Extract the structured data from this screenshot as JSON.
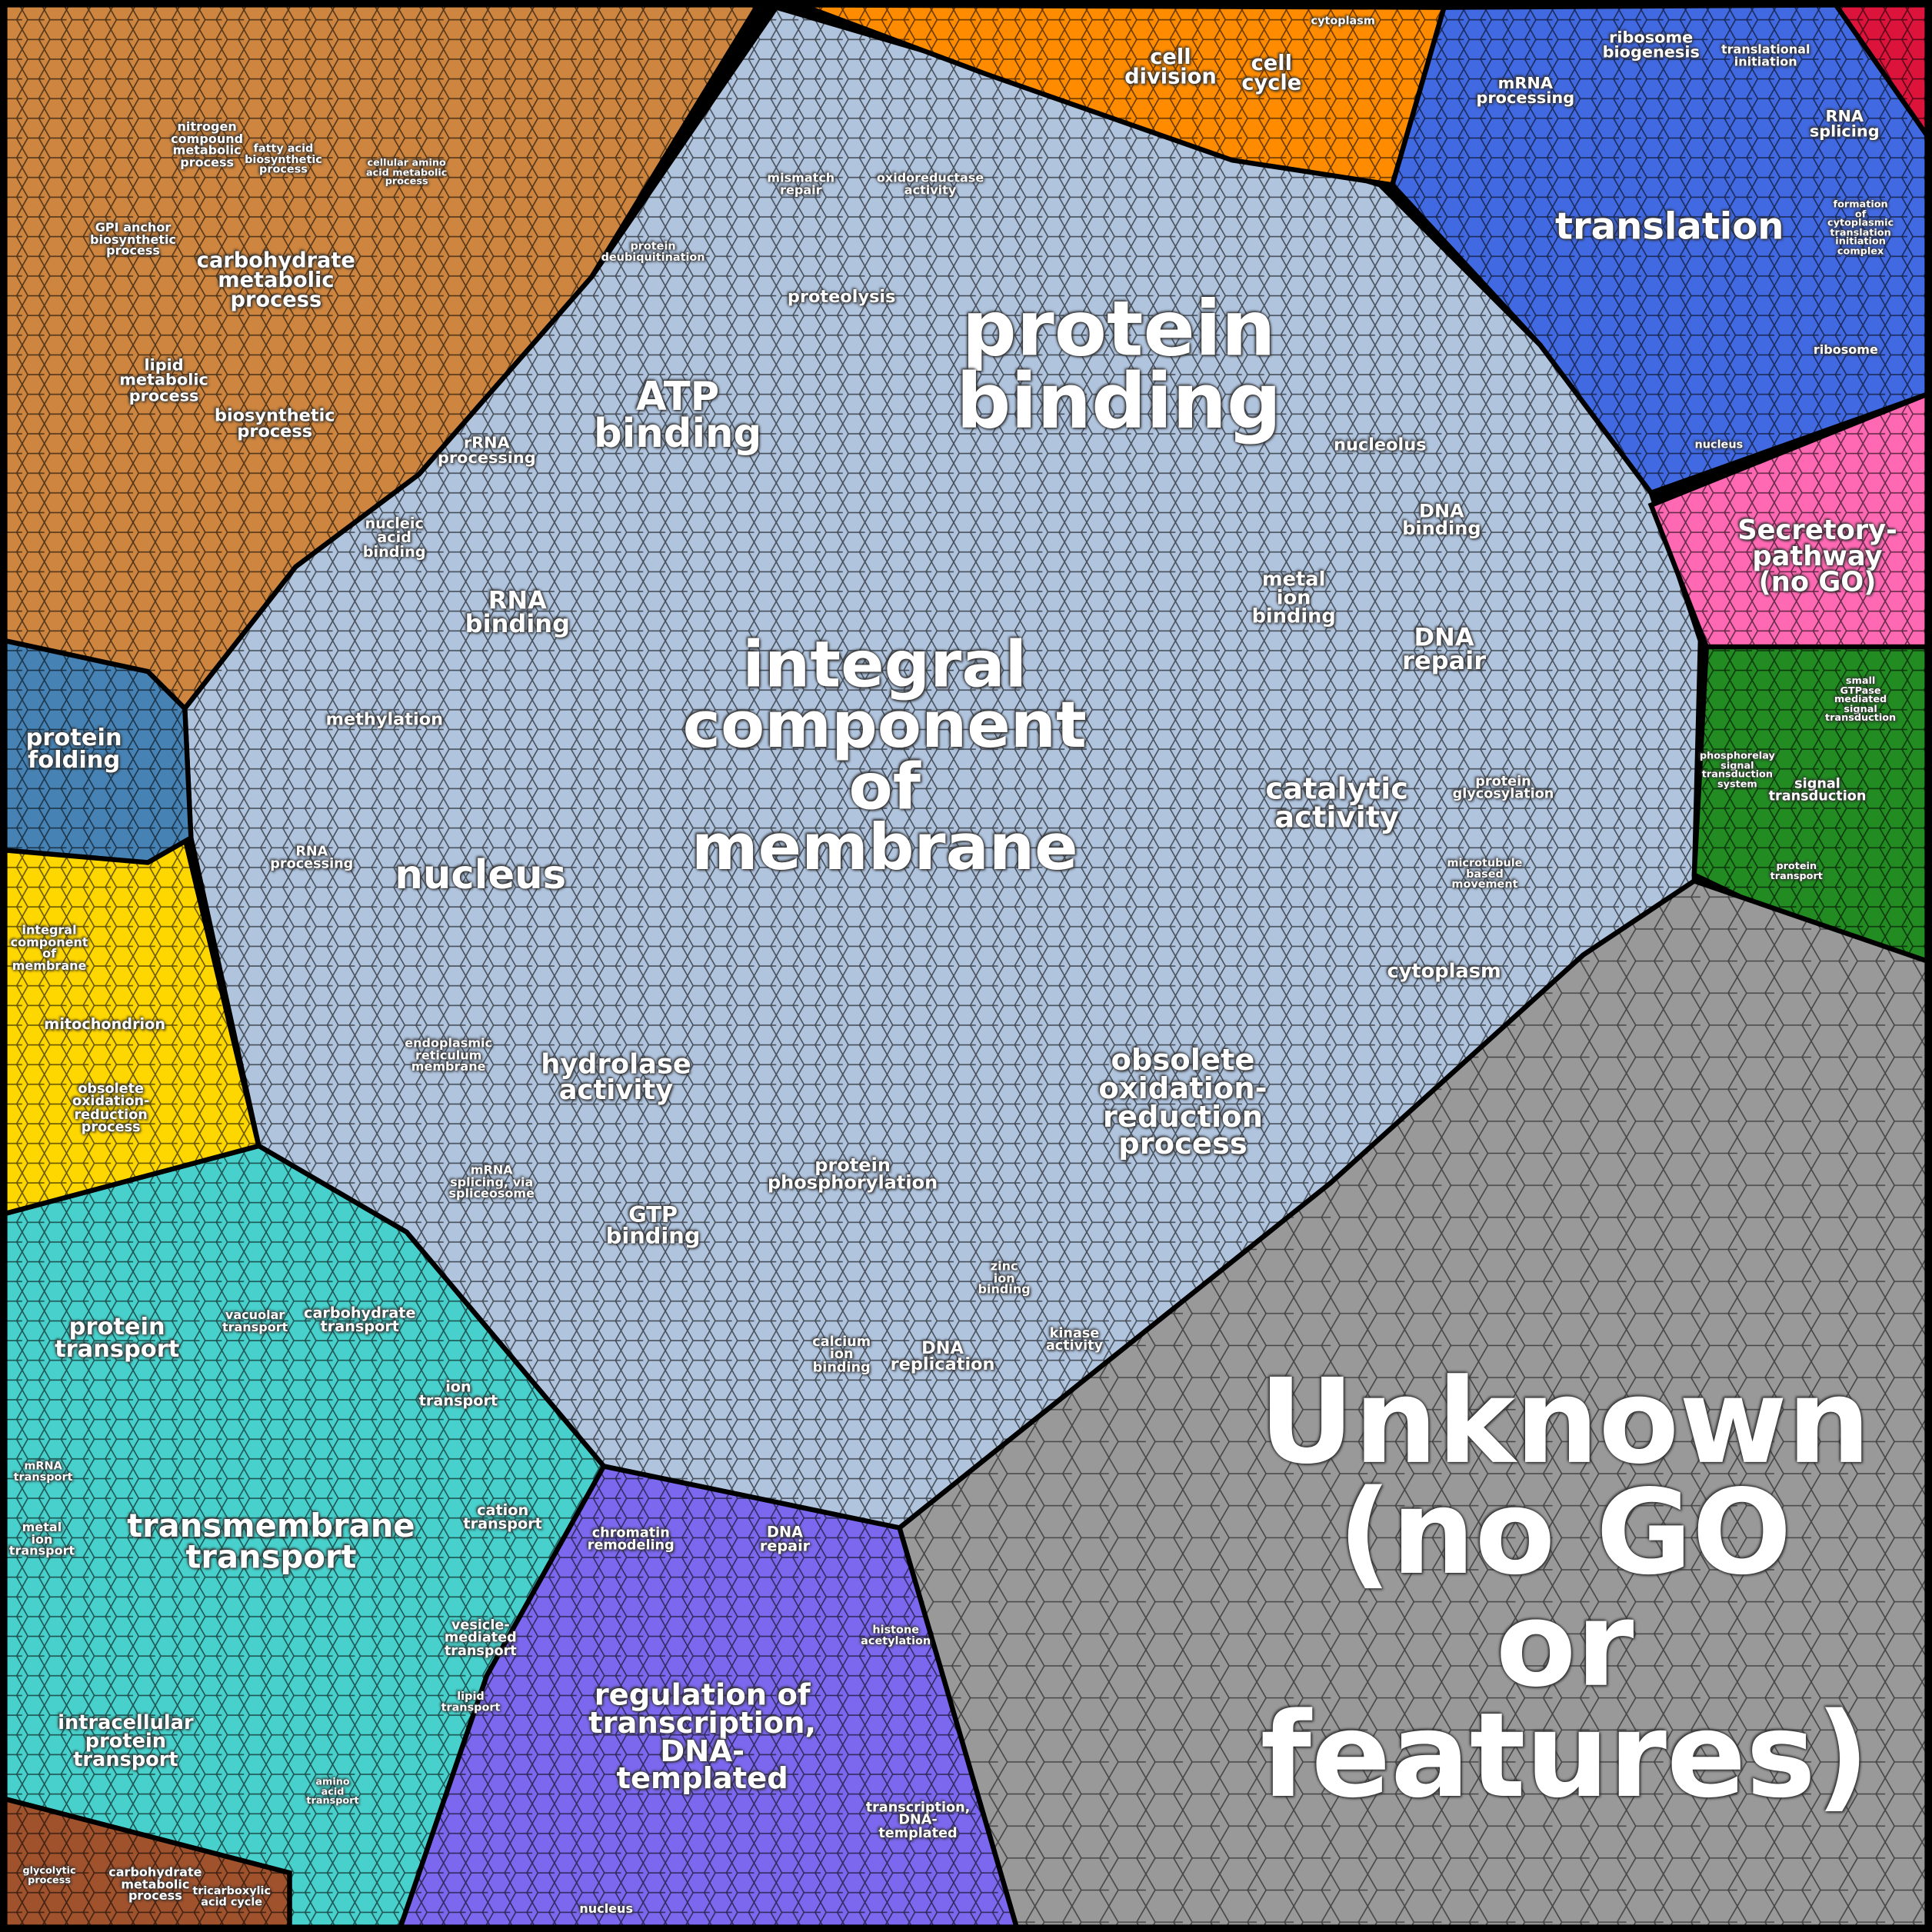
{
  "colors": {
    "metabolism": "#cd853f",
    "genetic_processing_membrane": "#b0c4de",
    "cell_cycle": "#ff8c00",
    "translation": "#4169e1",
    "signaling_red": "#dc143c",
    "secretory": "#ff69b4",
    "signaling": "#228b22",
    "unknown": "#999999",
    "transcription": "#7b68ee",
    "transport": "#48d1cc",
    "mitochondrion": "#ffd700",
    "folding": "#4682b4",
    "energy": "#a0522d"
  },
  "regions": [
    {
      "name": "metabolism",
      "color_key": "metabolism"
    },
    {
      "name": "membrane-and-binding",
      "color_key": "genetic_processing_membrane"
    },
    {
      "name": "cell-cycle",
      "color_key": "cell_cycle"
    },
    {
      "name": "translation",
      "color_key": "translation"
    },
    {
      "name": "red-region",
      "color_key": "signaling_red"
    },
    {
      "name": "secretory-pathway",
      "color_key": "secretory"
    },
    {
      "name": "signaling",
      "color_key": "signaling"
    },
    {
      "name": "unknown",
      "color_key": "unknown"
    },
    {
      "name": "transcription",
      "color_key": "transcription"
    },
    {
      "name": "transport",
      "color_key": "transport"
    },
    {
      "name": "mitochondrion",
      "color_key": "mitochondrion"
    },
    {
      "name": "protein-folding",
      "color_key": "folding"
    },
    {
      "name": "energy-metabolism",
      "color_key": "energy"
    }
  ],
  "labels": [
    "Unknown\n(no GO\nor\nfeatures)",
    "protein\nbinding",
    "integral\ncomponent\nof\nmembrane",
    "translation",
    "nucleus",
    "ATP\nbinding",
    "regulation of\ntranscription,\nDNA-\ntemplated",
    "transmembrane\ntransport",
    "obsolete\noxidation-\nreduction\nprocess",
    "catalytic\nactivity",
    "hydrolase\nactivity",
    "Secretory-\npathway\n(no GO)",
    "DNA\nrepair",
    "RNA\nbinding",
    "metal\nion\nbinding",
    "carbohydrate\nmetabolic\nprocess",
    "protein\nfolding",
    "protein\ntransport",
    "intracellular\nprotein\ntransport",
    "cell\ndivision",
    "cell\ncycle",
    "mRNA\nprocessing",
    "ribosome\nbiogenesis",
    "RNA\nsplicing",
    "ribosome",
    "signal\ntransduction",
    "GTP\nbinding",
    "protein\nphosphorylation",
    "cytoplasm",
    "DNA\nbinding",
    "nucleolus",
    "proteolysis",
    "rRNA\nprocessing",
    "methylation",
    "nucleic\nacid\nbinding",
    "RNA\nprocessing",
    "lipid\nmetabolic\nprocess",
    "biosynthetic\nprocess",
    "mitochondrion",
    "obsolete\noxidation-\nreduction\nprocess",
    "integral\ncomponent\nof\nmembrane",
    "carbohydrate\ntransport",
    "ion\ntransport",
    "cation\ntransport",
    "vesicle-\nmediated\ntransport",
    "DNA\nreplication",
    "calcium\nion\nbinding",
    "kinase\nactivity",
    "chromatin\nremodeling",
    "DNA\nrepair",
    "transcription,\nDNA-\ntemplated",
    "endoplasmic\nreticulum\nmembrane",
    "mRNA\nsplicing, via\nspliceosome",
    "protein\nglycosylation",
    "carbohydrate\nmetabolic\nprocess",
    "tricarboxylic\nacid cycle",
    "nitrogen\ncompound\nmetabolic\nprocess",
    "GPI anchor\nbiosynthetic\nprocess",
    "mismatch\nrepair",
    "oxidoreductase\nactivity",
    "cytoplasm",
    "protein\ndeubiquitination",
    "zinc\nion\nbinding",
    "nucleus",
    "histone\nacetylation",
    "translational\ninitiation",
    "formation\nof\ncytoplasmic\ntranslation\ninitiation\ncomplex",
    "nucleus",
    "glycolytic\nprocess",
    "vacuolar\ntransport",
    "lipid\ntransport",
    "amino\nacid\ntransport",
    "metal\nion\ntransport",
    "mRNA\ntransport",
    "microtubule\nbased\nmovement",
    "fatty acid\nbiosynthetic\nprocess",
    "cellular amino\nacid metabolic\nprocess",
    "phosphorelay\nsignal\ntransduction\nsystem",
    "small\nGTPase\nmediated\nsignal\ntransduction",
    "protein\ntransport"
  ]
}
